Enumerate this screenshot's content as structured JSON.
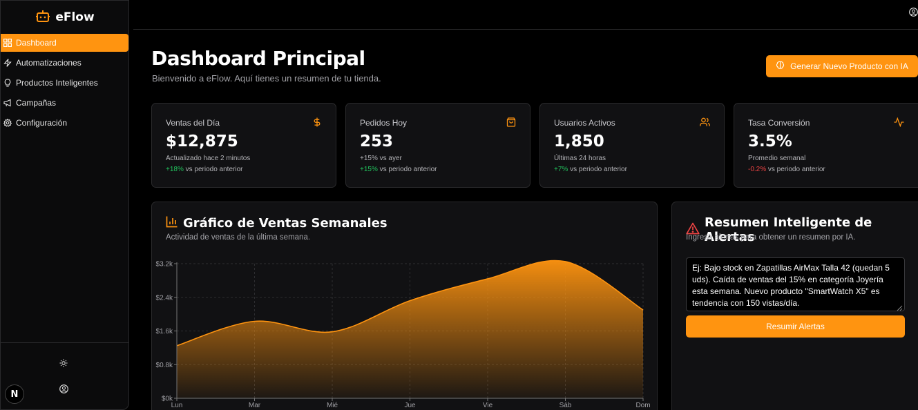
{
  "app": {
    "name": "eFlow"
  },
  "sidebar": {
    "items": [
      {
        "label": "Dashboard",
        "icon": "grid-icon",
        "active": true
      },
      {
        "label": "Automatizaciones",
        "icon": "zap-icon",
        "active": false
      },
      {
        "label": "Productos Inteligentes",
        "icon": "lightbulb-icon",
        "active": false
      },
      {
        "label": "Campañas",
        "icon": "megaphone-icon",
        "active": false
      },
      {
        "label": "Configuración",
        "icon": "gear-icon",
        "active": false
      }
    ],
    "badge": "N"
  },
  "header": {
    "title": "Dashboard Principal",
    "subtitle": "Bienvenido a eFlow. Aquí tienes un resumen de tu tienda.",
    "generate_button": "Generar Nuevo Producto con IA"
  },
  "stats": [
    {
      "label": "Ventas del Día",
      "icon": "dollar-icon",
      "value": "$12,875",
      "note": "Actualizado hace 2 minutos",
      "trend": "+18%",
      "trend_text": " vs periodo anterior",
      "trend_dir": "up"
    },
    {
      "label": "Pedidos Hoy",
      "icon": "shopping-bag-icon",
      "value": "253",
      "note": "+15% vs ayer",
      "trend": "+15%",
      "trend_text": " vs periodo anterior",
      "trend_dir": "up"
    },
    {
      "label": "Usuarios Activos",
      "icon": "users-icon",
      "value": "1,850",
      "note": "Últimas 24 horas",
      "trend": "+7%",
      "trend_text": " vs periodo anterior",
      "trend_dir": "up"
    },
    {
      "label": "Tasa Conversión",
      "icon": "activity-icon",
      "value": "3.5%",
      "note": "Promedio semanal",
      "trend": "-0.2%",
      "trend_text": " vs periodo anterior",
      "trend_dir": "down"
    }
  ],
  "sales_chart": {
    "title": "Gráfico de Ventas Semanales",
    "subtitle": "Actividad de ventas de la última semana."
  },
  "chart_data": {
    "type": "area",
    "categories": [
      "Lun",
      "Mar",
      "Mié",
      "Jue",
      "Vie",
      "Sáb",
      "Dom"
    ],
    "values": [
      1250,
      1830,
      1580,
      2320,
      2840,
      3250,
      2100
    ],
    "ylim": [
      0,
      3200
    ],
    "yticks": [
      0,
      800,
      1600,
      2400,
      3200
    ],
    "ytick_labels": [
      "$0k",
      "$0.8k",
      "$1.6k",
      "$2.4k",
      "$3.2k"
    ],
    "grid": true,
    "color": "#ff9410",
    "title": "",
    "xlabel": "",
    "ylabel": ""
  },
  "alerts": {
    "title": "Resumen Inteligente de Alertas",
    "subtitle": "Ingresa alertas para obtener un resumen por IA.",
    "input_value": "Ej: Bajo stock en Zapatillas AirMax Talla 42 (quedan 5 uds). Caída de ventas del 15% en categoría Joyería esta semana. Nuevo producto \"SmartWatch X5\" es tendencia con 150 vistas/día.",
    "button": "Resumir Alertas"
  },
  "colors": {
    "accent": "#ff9410",
    "positive": "#22c55e",
    "negative": "#ef4444",
    "warning": "#ef4444"
  }
}
